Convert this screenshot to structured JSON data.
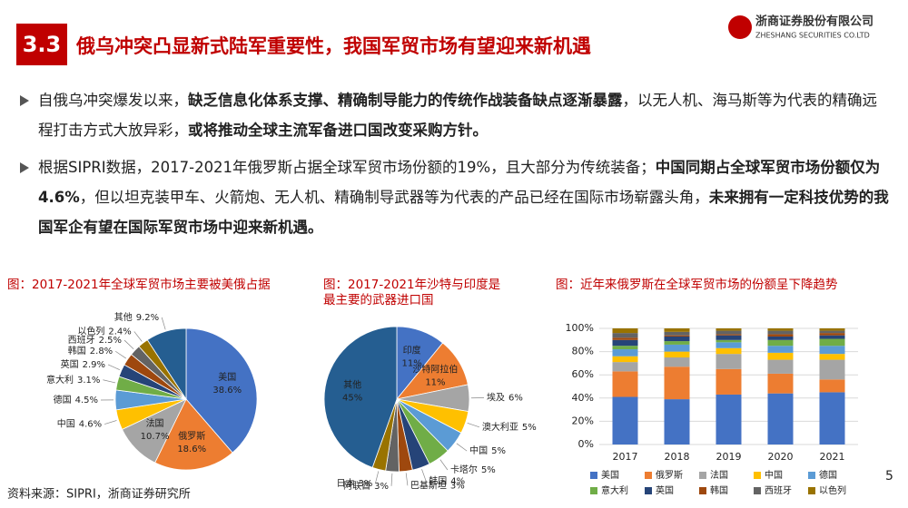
{
  "header": {
    "number": "3.3",
    "title": "俄乌冲突凸显新式陆军重要性，我国军贸市场有望迎来新机遇"
  },
  "logo": {
    "name": "浙商证券股份有限公司",
    "english": "ZHESHANG SECURITIES CO.LTD"
  },
  "bullets": [
    [
      {
        "text": "自俄乌冲突爆发以来，",
        "bold": false
      },
      {
        "text": "缺乏信息化体系支撑、精确制导能力的传统作战装备缺点逐渐暴露",
        "bold": true
      },
      {
        "text": "，以无人机、海马斯等为代表的精确远程打击方式大放异彩，",
        "bold": false
      },
      {
        "text": "或将推动全球主流军备进口国改变采购方针。",
        "bold": true
      }
    ],
    [
      {
        "text": "根据SIPRI数据，2017-2021年俄罗斯占据全球军贸市场份额的19%，且大部分为传统装备；",
        "bold": false
      },
      {
        "text": "中国同期占全球军贸市场份额仅为4.6%",
        "bold": true
      },
      {
        "text": "，但以坦克装甲车、火箭炮、无人机、精确制导武器等为代表的产品已经在国际市场崭露头角，",
        "bold": false
      },
      {
        "text": "未来拥有一定科技优势的我国军企有望在国际军贸市场中迎来新机遇。",
        "bold": true
      }
    ]
  ],
  "chart_data": [
    {
      "type": "pie",
      "title": "图：2017-2021年全球军贸市场主要被美俄占据",
      "categories": [
        "美国",
        "俄罗斯",
        "法国",
        "中国",
        "德国",
        "意大利",
        "英国",
        "韩国",
        "西班牙",
        "以色列",
        "其他"
      ],
      "values": [
        38.6,
        18.6,
        10.7,
        4.6,
        4.5,
        3.1,
        2.9,
        2.8,
        2.5,
        2.4,
        9.2
      ],
      "value_labels": [
        "38.6%",
        "18.6%",
        "10.7%",
        "4.6%",
        "4.5%",
        "3.1%",
        "2.9%",
        "2.8%",
        "2.5%",
        "2.4%",
        "9.2%"
      ],
      "colors": [
        "#4472c4",
        "#ed7d31",
        "#a5a5a5",
        "#ffc000",
        "#5b9bd5",
        "#70ad47",
        "#264478",
        "#9e480e",
        "#636363",
        "#997300",
        "#255e91"
      ]
    },
    {
      "type": "pie",
      "title": "图：2017-2021年沙特与印度是最主要的武器进口国",
      "categories": [
        "印度",
        "沙特阿拉伯",
        "埃及",
        "澳大利亚",
        "中国",
        "卡塔尔",
        "韩国",
        "巴基斯坦",
        "阿联酋",
        "日本",
        "其他"
      ],
      "values": [
        11,
        11,
        6,
        5,
        5,
        5,
        4,
        3,
        3,
        3,
        45
      ],
      "value_labels": [
        "11%",
        "11%",
        "6%",
        "5%",
        "5%",
        "5%",
        "4%",
        "3%",
        "3%",
        "3%",
        "45%"
      ],
      "colors": [
        "#4472c4",
        "#ed7d31",
        "#a5a5a5",
        "#ffc000",
        "#5b9bd5",
        "#70ad47",
        "#264478",
        "#9e480e",
        "#636363",
        "#997300",
        "#255e91"
      ]
    },
    {
      "type": "bar",
      "stacked": true,
      "title": "图：近年来俄罗斯在全球军贸市场的份额呈下降趋势",
      "categories": [
        "2017",
        "2018",
        "2019",
        "2020",
        "2021"
      ],
      "series": [
        {
          "name": "美国",
          "color": "#4472c4",
          "values": [
            41,
            39,
            43,
            44,
            45
          ]
        },
        {
          "name": "俄罗斯",
          "color": "#ed7d31",
          "values": [
            22,
            28,
            22,
            17,
            11
          ]
        },
        {
          "name": "法国",
          "color": "#a5a5a5",
          "values": [
            8,
            8,
            13,
            12,
            17
          ]
        },
        {
          "name": "中国",
          "color": "#ffc000",
          "values": [
            5,
            5,
            5,
            6,
            5
          ]
        },
        {
          "name": "德国",
          "color": "#5b9bd5",
          "values": [
            6,
            6,
            5,
            6,
            7
          ]
        },
        {
          "name": "意大利",
          "color": "#70ad47",
          "values": [
            3,
            3,
            2,
            5,
            6
          ]
        },
        {
          "name": "英国",
          "color": "#264478",
          "values": [
            5,
            4,
            4,
            3,
            3
          ]
        },
        {
          "name": "韩国",
          "color": "#9e480e",
          "values": [
            2,
            1,
            1,
            2,
            2
          ]
        },
        {
          "name": "西班牙",
          "color": "#636363",
          "values": [
            4,
            3,
            3,
            3,
            2
          ]
        },
        {
          "name": "以色列",
          "color": "#997300",
          "values": [
            4,
            3,
            2,
            2,
            2
          ]
        }
      ],
      "ylim": [
        0,
        100
      ],
      "yticks": [
        {
          "value": 0,
          "label": "0%"
        },
        {
          "value": 20,
          "label": "20%"
        },
        {
          "value": 40,
          "label": "40%"
        },
        {
          "value": 60,
          "label": "60%"
        },
        {
          "value": 80,
          "label": "80%"
        },
        {
          "value": 100,
          "label": "100%"
        }
      ],
      "grid": true,
      "legend": "bottom"
    }
  ],
  "source": "资料来源：SIPRI，浙商证券研究所",
  "page_number": "5"
}
